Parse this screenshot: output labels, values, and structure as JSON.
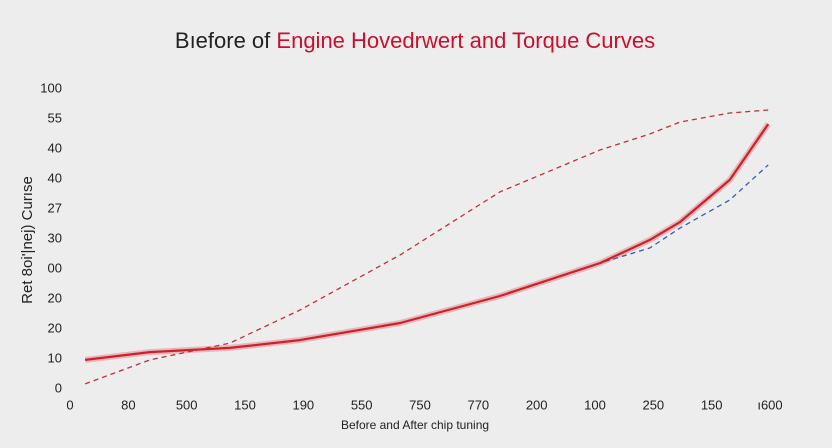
{
  "chart_data": {
    "type": "line",
    "title": "Bıefore of",
    "title_highlight": "Engine Hovedrwert and Torque Curves",
    "xlabel": "Before and After chip tuning",
    "ylabel": "Ret 8oi'|nej) Curıse",
    "x": [
      26,
      137,
      274,
      394,
      566,
      737,
      909,
      994,
      1046,
      1131,
      1197
    ],
    "series": [
      {
        "color": "#2f5fb3",
        "style": "dashed",
        "values": [
          9.7,
          12.3,
          13.7,
          16.3,
          22,
          31,
          42,
          47,
          53.7,
          63,
          74.7
        ]
      },
      {
        "color": "#d01f2a",
        "style": "solid",
        "values": [
          9.7,
          12.3,
          13.7,
          16.3,
          22,
          31,
          42,
          49.7,
          55.7,
          69.7,
          88.3
        ]
      },
      {
        "color": "#c0303a",
        "style": "dashed",
        "values": [
          1.7,
          9.7,
          15.3,
          26.3,
          44.7,
          65.7,
          79.7,
          85,
          89,
          92,
          93
        ]
      }
    ],
    "xlim": [
      0,
      1200
    ],
    "xticks": [
      0,
      {
        "value": 100,
        "label": "80"
      },
      {
        "value": 200,
        "label": "500"
      },
      {
        "value": 300,
        "label": "150"
      },
      {
        "value": 400,
        "label": "190"
      },
      {
        "value": 500,
        "label": "550"
      },
      {
        "value": 600,
        "label": "750"
      },
      {
        "value": 700,
        "label": "770"
      },
      {
        "value": 800,
        "label": "200"
      },
      {
        "value": 900,
        "label": "100"
      },
      {
        "value": 1000,
        "label": "250"
      },
      {
        "value": 1100,
        "label": "150"
      },
      {
        "value": 1200,
        "label": "ı600"
      }
    ],
    "ylim": [
      0,
      100
    ],
    "yticks": [
      0,
      {
        "value": 10,
        "label": "10"
      },
      {
        "value": 20,
        "label": "20"
      },
      {
        "value": 30,
        "label": "20"
      },
      {
        "value": 40,
        "label": "00"
      },
      {
        "value": 50,
        "label": "30"
      },
      {
        "value": 60,
        "label": "27"
      },
      {
        "value": 70,
        "label": "40"
      },
      {
        "value": 80,
        "label": "40"
      },
      {
        "value": 90,
        "label": "55"
      },
      100
    ],
    "grid": false
  }
}
